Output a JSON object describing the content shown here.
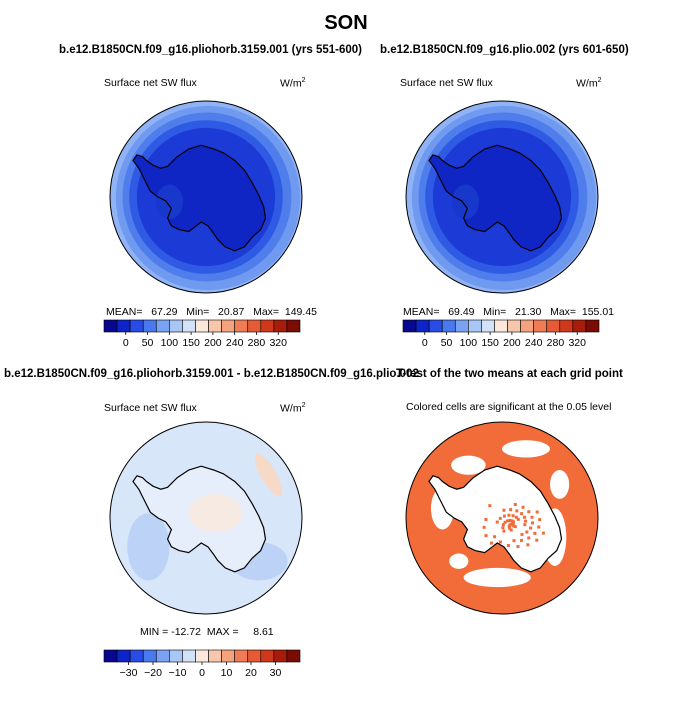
{
  "page": {
    "title": "SON"
  },
  "panels": [
    {
      "title": "b.e12.B1850CN.f09_g16.pliohorb.3159.001 (yrs 551-600)",
      "variable": "Surface net SW flux",
      "units": "W/m",
      "units_sup": "2",
      "stats": "MEAN=   67.29   Min=   20.87   Max=  149.45"
    },
    {
      "title": "b.e12.B1850CN.f09_g16.plio.002 (yrs 601-650)",
      "variable": "Surface net SW flux",
      "units": "W/m",
      "units_sup": "2",
      "stats": "MEAN=   69.49   Min=   21.30   Max=  155.01"
    },
    {
      "title": "b.e12.B1850CN.f09_g16.pliohorb.3159.001 - b.e12.B1850CN.f09_g16.plio.002",
      "variable": "Surface net SW flux",
      "units": "W/m",
      "units_sup": "2",
      "stats": "MIN = -12.72  MAX =     8.61"
    },
    {
      "title": "T-test of the two means at each grid point",
      "subtitle": "Colored cells are significant at the 0.05 level"
    }
  ],
  "chart_data": [
    {
      "type": "heatmap",
      "projection": "south polar stereographic",
      "title": "b.e12.B1850CN.f09_g16.pliohorb.3159.001 (yrs 551-600)",
      "variable": "Surface net SW flux",
      "units": "W/m^2",
      "mean": 67.29,
      "min": 20.87,
      "max": 149.45,
      "colorbar_levels": [
        0,
        50,
        100,
        150,
        200,
        240,
        280,
        320
      ],
      "colorbar_colors": [
        "#08088f",
        "#0c24c8",
        "#2a4ce6",
        "#4a78ee",
        "#7aa2f2",
        "#a8c6f6",
        "#d2e2f8",
        "#fbe8dc",
        "#f8c6aa",
        "#f5a27e",
        "#f07c56",
        "#e65a35",
        "#d0381c",
        "#a81c0c",
        "#7a0c04"
      ]
    },
    {
      "type": "heatmap",
      "projection": "south polar stereographic",
      "title": "b.e12.B1850CN.f09_g16.plio.002 (yrs 601-650)",
      "variable": "Surface net SW flux",
      "units": "W/m^2",
      "mean": 69.49,
      "min": 21.3,
      "max": 155.01,
      "colorbar_levels": [
        0,
        50,
        100,
        150,
        200,
        240,
        280,
        320
      ],
      "colorbar_colors": [
        "#08088f",
        "#0c24c8",
        "#2a4ce6",
        "#4a78ee",
        "#7aa2f2",
        "#a8c6f6",
        "#d2e2f8",
        "#fbe8dc",
        "#f8c6aa",
        "#f5a27e",
        "#f07c56",
        "#e65a35",
        "#d0381c",
        "#a81c0c",
        "#7a0c04"
      ]
    },
    {
      "type": "heatmap",
      "projection": "south polar stereographic",
      "title": "b.e12.B1850CN.f09_g16.pliohorb.3159.001 - b.e12.B1850CN.f09_g16.plio.002",
      "variable": "Surface net SW flux",
      "units": "W/m^2",
      "min": -12.72,
      "max": 8.61,
      "colorbar_levels": [
        -30,
        -20,
        -10,
        0,
        10,
        20,
        30
      ],
      "colorbar_colors": [
        "#08088f",
        "#0c24c8",
        "#2a4ce6",
        "#4a78ee",
        "#7aa2f2",
        "#a8c6f6",
        "#d2e2f8",
        "#fbe8dc",
        "#f8c6aa",
        "#f5a27e",
        "#f07c56",
        "#e65a35",
        "#d0381c",
        "#a81c0c",
        "#7a0c04"
      ]
    },
    {
      "type": "heatmap",
      "projection": "south polar stereographic",
      "title": "T-test of the two means at each grid point",
      "subtitle": "Colored cells are significant at the 0.05 level",
      "significance_level": 0.05,
      "significant_color": "#f26c3a"
    }
  ]
}
